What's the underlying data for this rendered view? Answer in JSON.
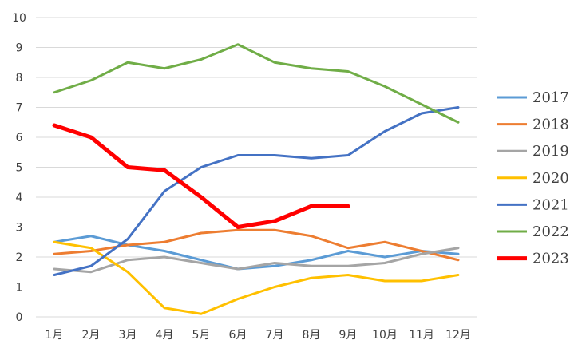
{
  "chart_data": {
    "type": "line",
    "title": "",
    "xlabel": "",
    "ylabel": "",
    "categories": [
      "1月",
      "2月",
      "3月",
      "4月",
      "5月",
      "6月",
      "7月",
      "8月",
      "9月",
      "10月",
      "11月",
      "12月"
    ],
    "ylim": [
      0,
      10
    ],
    "yticks": [
      0,
      1,
      2,
      3,
      4,
      5,
      6,
      7,
      8,
      9,
      10
    ],
    "grid": "horizontal",
    "legend": "right",
    "series": [
      {
        "name": "2017",
        "color": "#5B9BD5",
        "width": 3,
        "values": [
          2.5,
          2.7,
          2.4,
          2.2,
          1.9,
          1.6,
          1.7,
          1.9,
          2.2,
          2.0,
          2.2,
          2.1
        ]
      },
      {
        "name": "2018",
        "color": "#ED7D31",
        "width": 3,
        "values": [
          2.1,
          2.2,
          2.4,
          2.5,
          2.8,
          2.9,
          2.9,
          2.7,
          2.3,
          2.5,
          2.2,
          1.9
        ]
      },
      {
        "name": "2019",
        "color": "#A5A5A5",
        "width": 3,
        "values": [
          1.6,
          1.5,
          1.9,
          2.0,
          1.8,
          1.6,
          1.8,
          1.7,
          1.7,
          1.8,
          2.1,
          2.3
        ]
      },
      {
        "name": "2020",
        "color": "#FFC000",
        "width": 3,
        "values": [
          2.5,
          2.3,
          1.5,
          0.3,
          0.1,
          0.6,
          1.0,
          1.3,
          1.4,
          1.2,
          1.2,
          1.4
        ]
      },
      {
        "name": "2021",
        "color": "#4472C4",
        "width": 3,
        "values": [
          1.4,
          1.7,
          2.6,
          4.2,
          5.0,
          5.4,
          5.4,
          5.3,
          5.4,
          6.2,
          6.8,
          7.0
        ]
      },
      {
        "name": "2022",
        "color": "#70AD47",
        "width": 3,
        "values": [
          7.5,
          7.9,
          8.5,
          8.3,
          8.6,
          9.1,
          8.5,
          8.3,
          8.2,
          7.7,
          7.1,
          6.5
        ]
      },
      {
        "name": "2023",
        "color": "#FF0000",
        "width": 5,
        "values": [
          6.4,
          6.0,
          5.0,
          4.9,
          4.0,
          3.0,
          3.2,
          3.7,
          3.7,
          null,
          null,
          null
        ]
      }
    ]
  }
}
